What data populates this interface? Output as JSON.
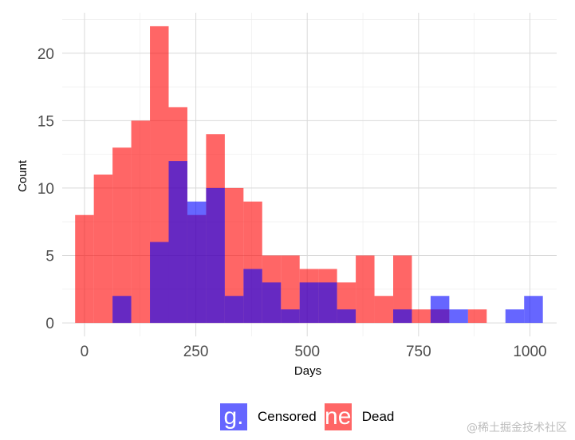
{
  "chart_data": {
    "type": "histogram",
    "xlabel": "Days",
    "ylabel": "Count",
    "xlim": [
      -50,
      1060
    ],
    "ylim": [
      -1,
      23
    ],
    "x_ticks": [
      0,
      250,
      500,
      750,
      1000
    ],
    "y_ticks": [
      0,
      5,
      10,
      15,
      20
    ],
    "grid": true,
    "legend_position": "bottom",
    "bin_width": 42,
    "bin_centers": [
      0,
      42,
      84,
      126,
      168,
      210,
      252,
      294,
      336,
      378,
      420,
      462,
      504,
      546,
      588,
      630,
      672,
      714,
      756,
      798,
      840,
      882,
      924,
      966,
      1008
    ],
    "series": [
      {
        "name": "Censored",
        "legend_glyph": "g.",
        "color": "#0000ff",
        "opacity": 0.6,
        "values": [
          0,
          0,
          2,
          0,
          6,
          12,
          9,
          10,
          2,
          4,
          3,
          1,
          3,
          3,
          1,
          0,
          0,
          1,
          0,
          2,
          1,
          0,
          0,
          1,
          2
        ]
      },
      {
        "name": "Dead",
        "legend_glyph": "ne",
        "color": "#ff0000",
        "opacity": 0.6,
        "values": [
          8,
          11,
          13,
          15,
          22,
          16,
          8,
          14,
          10,
          9,
          5,
          5,
          4,
          4,
          3,
          5,
          2,
          5,
          1,
          1,
          0,
          1,
          0,
          0,
          0
        ]
      }
    ]
  },
  "watermark": "@稀土掘金技术社区"
}
